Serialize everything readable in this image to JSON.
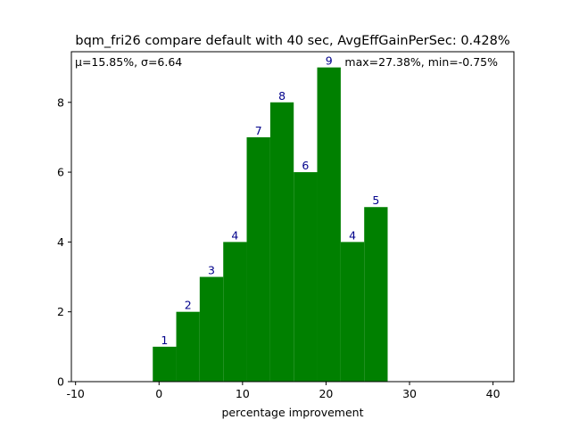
{
  "chart_data": {
    "type": "bar",
    "title": "bqm_fri26 compare default with 40 sec, AvgEffGainPerSec: 0.428%",
    "xlabel": "percentage improvement",
    "ylabel": "",
    "xlim": [
      -10.5,
      42.5
    ],
    "ylim": [
      0,
      9.45
    ],
    "xticks": [
      -10,
      0,
      10,
      20,
      30,
      40
    ],
    "yticks": [
      0,
      2,
      4,
      6,
      8
    ],
    "grid": false,
    "bar_color": "#008000",
    "label_color": "#00008b",
    "bins": [
      {
        "left": -0.75,
        "right": 2.06,
        "value": 1
      },
      {
        "left": 2.06,
        "right": 4.87,
        "value": 2
      },
      {
        "left": 4.87,
        "right": 7.69,
        "value": 3
      },
      {
        "left": 7.69,
        "right": 10.5,
        "value": 4
      },
      {
        "left": 10.5,
        "right": 13.32,
        "value": 7
      },
      {
        "left": 13.32,
        "right": 16.13,
        "value": 8
      },
      {
        "left": 16.13,
        "right": 18.94,
        "value": 6
      },
      {
        "left": 18.94,
        "right": 21.76,
        "value": 9
      },
      {
        "left": 21.76,
        "right": 24.57,
        "value": 4
      },
      {
        "left": 24.57,
        "right": 27.38,
        "value": 5
      }
    ],
    "annotations": {
      "stats_left": "μ=15.85%, σ=6.64",
      "stats_right": "max=27.38%, min=-0.75%"
    }
  }
}
